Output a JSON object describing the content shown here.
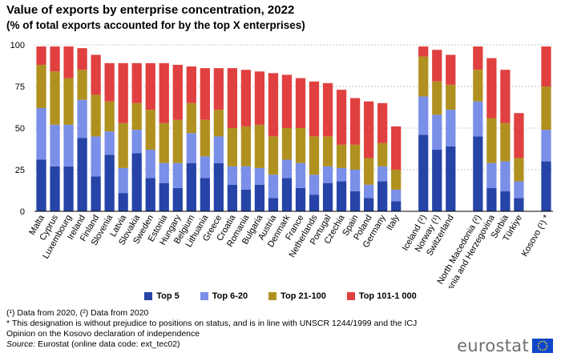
{
  "title": "Value of exports by enterprise concentration, 2022",
  "subtitle": "(% of total exports accounted for by the top X enterprises)",
  "legend": {
    "items": [
      {
        "label": "Top 5",
        "color": "#2644A7"
      },
      {
        "label": "Top 6-20",
        "color": "#7A8FE8"
      },
      {
        "label": "Top 21-100",
        "color": "#B09120"
      },
      {
        "label": "Top 101-1 000",
        "color": "#E04040"
      }
    ]
  },
  "notes": {
    "line1": "(¹) Data from 2020, (²) Data from 2020",
    "line2": "* This designation is without prejudice to positions on status, and is in line with UNSCR  1244/1999 and the ICJ",
    "line3": "Opinion on the Kosovo declaration of independence",
    "source_label": "Source:",
    "source_text": " Eurostat (online data code: ext_tec02)"
  },
  "brand": {
    "text": "eurostat",
    "flag_color": "#0E47CB",
    "star_color": "#FFD617"
  },
  "chart_data": {
    "type": "bar",
    "stacked": true,
    "ylim": [
      0,
      100
    ],
    "yticks": [
      0,
      25,
      50,
      75,
      100
    ],
    "grid": true,
    "xlabel": "",
    "ylabel": "",
    "categories": [
      "Malta",
      "Cyprus",
      "Luxembourg",
      "Ireland",
      "Finland",
      "Slovenia",
      "Latvia",
      "Slovakia",
      "Sweden",
      "Estonia",
      "Hungary",
      "Belgium",
      "Lithuania",
      "Greece",
      "Croatia",
      "Romania",
      "Bulgaria",
      "Austria",
      "Denmark",
      "France",
      "Netherlands",
      "Portugal",
      "Czechia",
      "Spain",
      "Poland",
      "Germany",
      "Italy",
      "",
      "Iceland (²)",
      "Norway (¹)",
      "Switzerland",
      "",
      "North Macedonia (²)",
      "Bosnia and Herzegovina",
      "Serbia",
      "Türkiye",
      "",
      "Kosovo (¹) *"
    ],
    "series": [
      {
        "name": "Top 5",
        "color": "#2644A7",
        "values": [
          31,
          27,
          27,
          44,
          21,
          34,
          11,
          35,
          20,
          17,
          14,
          29,
          20,
          29,
          16,
          13,
          16,
          8,
          20,
          14,
          10,
          17,
          18,
          12,
          8,
          18,
          6,
          null,
          46,
          37,
          39,
          null,
          45,
          14,
          12,
          8,
          null,
          30
        ]
      },
      {
        "name": "Top 6-20",
        "color": "#7A8FE8",
        "values": [
          31,
          25,
          25,
          23,
          24,
          14,
          15,
          14,
          17,
          12,
          15,
          18,
          13,
          16,
          11,
          14,
          10,
          14,
          11,
          15,
          12,
          10,
          8,
          13,
          8,
          9,
          7,
          null,
          23,
          21,
          22,
          null,
          21,
          15,
          18,
          10,
          null,
          19
        ]
      },
      {
        "name": "Top 21-100",
        "color": "#B09120",
        "values": [
          26,
          32,
          28,
          18,
          25,
          18,
          27,
          16,
          24,
          24,
          26,
          18,
          22,
          16,
          23,
          24,
          26,
          23,
          19,
          21,
          23,
          18,
          14,
          15,
          16,
          14,
          12,
          null,
          24,
          20,
          15,
          null,
          19,
          27,
          23,
          14,
          null,
          26
        ]
      },
      {
        "name": "Top 101-1 000",
        "color": "#E04040",
        "values": [
          11,
          15,
          19,
          13,
          24,
          23,
          36,
          24,
          28,
          36,
          33,
          22,
          31,
          25,
          36,
          34,
          32,
          38,
          32,
          30,
          33,
          32,
          33,
          28,
          34,
          24,
          26,
          null,
          6,
          19,
          18,
          null,
          14,
          36,
          32,
          27,
          null,
          24
        ]
      }
    ]
  }
}
